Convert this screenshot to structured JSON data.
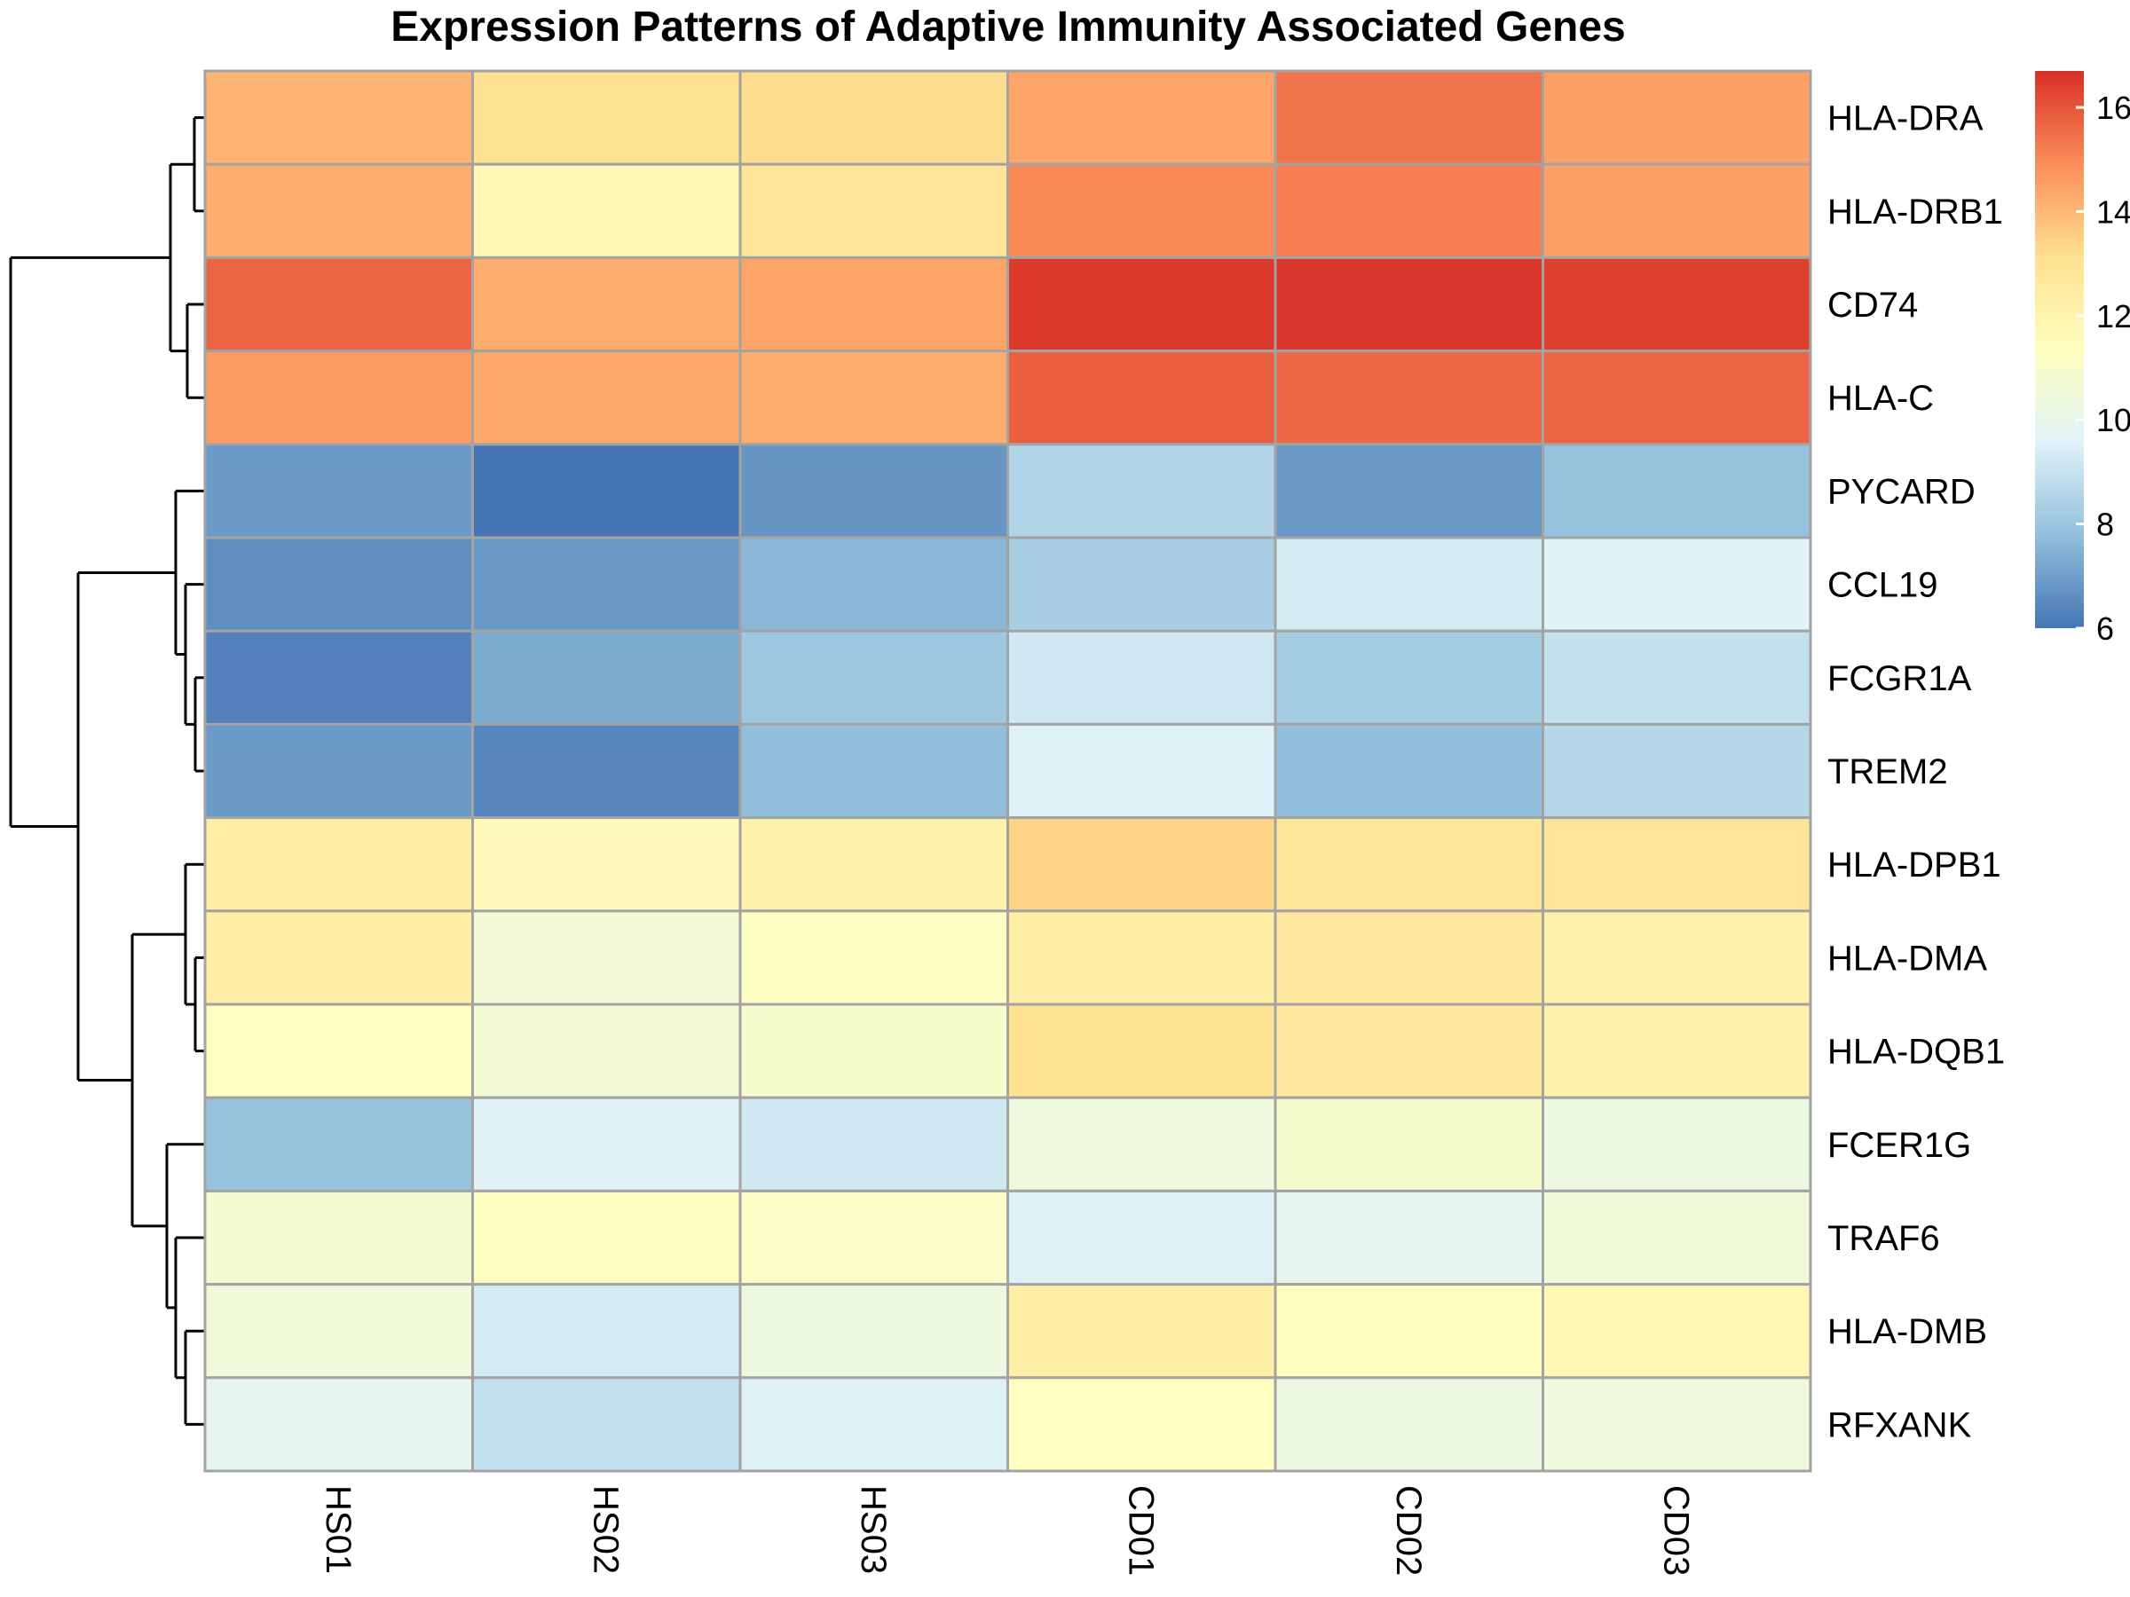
{
  "chart_data": {
    "type": "heatmap",
    "title": "Expression Patterns of Adaptive Immunity Associated Genes",
    "columns": [
      "HS01",
      "HS02",
      "HS03",
      "CD01",
      "CD02",
      "CD03"
    ],
    "rows": [
      "HLA-DRA",
      "HLA-DRB1",
      "CD74",
      "HLA-C",
      "PYCARD",
      "CCL19",
      "FCGR1A",
      "TREM2",
      "HLA-DPB1",
      "HLA-DMA",
      "HLA-DQB1",
      "FCER1G",
      "TRAF6",
      "HLA-DMB",
      "RFXANK"
    ],
    "values": [
      [
        14.1,
        13.1,
        13.2,
        14.4,
        15.4,
        14.5
      ],
      [
        14.2,
        11.8,
        12.9,
        15.0,
        15.2,
        14.5
      ],
      [
        15.7,
        14.2,
        14.4,
        16.5,
        16.6,
        16.4
      ],
      [
        14.6,
        14.3,
        14.2,
        15.8,
        15.6,
        15.7
      ],
      [
        6.9,
        6.0,
        6.8,
        8.5,
        6.9,
        7.9
      ],
      [
        6.6,
        6.9,
        7.6,
        8.3,
        9.3,
        9.6
      ],
      [
        6.3,
        7.3,
        8.1,
        9.2,
        8.2,
        8.9
      ],
      [
        6.9,
        6.4,
        7.8,
        9.5,
        7.8,
        8.6
      ],
      [
        12.3,
        11.5,
        12.1,
        13.4,
        12.8,
        12.9
      ],
      [
        12.3,
        10.6,
        11.2,
        12.3,
        12.6,
        12.2
      ],
      [
        11.3,
        10.7,
        10.9,
        13.0,
        12.6,
        12.2
      ],
      [
        7.9,
        9.6,
        9.2,
        10.4,
        10.9,
        10.3
      ],
      [
        10.8,
        11.2,
        11.1,
        9.5,
        9.9,
        10.5
      ],
      [
        10.5,
        9.3,
        10.3,
        12.3,
        11.4,
        11.8
      ],
      [
        9.9,
        8.9,
        9.5,
        11.3,
        10.3,
        10.4
      ]
    ],
    "color_scale": {
      "min": 6,
      "max": 16.7,
      "ticks": [
        6,
        8,
        10,
        12,
        14,
        16
      ],
      "colors": [
        "#4575b4",
        "#91bfdb",
        "#e0f3f8",
        "#ffffbf",
        "#fee090",
        "#fc8d59",
        "#d73027"
      ],
      "legend_position": "top-right"
    },
    "row_dendrogram": true,
    "column_dendrogram": false,
    "grid_color": "#a3a3a3"
  }
}
